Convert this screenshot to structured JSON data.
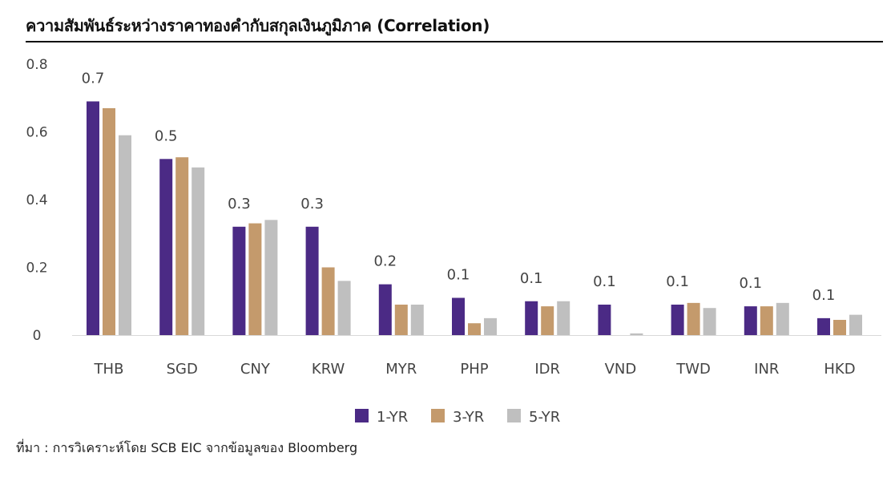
{
  "chart_data": {
    "type": "bar",
    "title": "ความสัมพันธ์ระหว่างราคาทองคำกับสกุลเงินภูมิภาค  (Correlation)",
    "xlabel": "",
    "ylabel": "",
    "ylim": [
      0,
      0.8
    ],
    "yticks": [
      0,
      0.2,
      0.4,
      0.6,
      0.8
    ],
    "ytick_labels": [
      "0",
      "0.2",
      "0.4",
      "0.6",
      "0.8"
    ],
    "grid": false,
    "legend_position": "bottom",
    "categories": [
      "THB",
      "SGD",
      "CNY",
      "KRW",
      "MYR",
      "PHP",
      "IDR",
      "VND",
      "TWD",
      "INR",
      "HKD"
    ],
    "series": [
      {
        "name": "1-YR",
        "color": "#4B2A85",
        "values": [
          0.69,
          0.52,
          0.32,
          0.32,
          0.15,
          0.11,
          0.1,
          0.09,
          0.09,
          0.085,
          0.05
        ]
      },
      {
        "name": "3-YR",
        "color": "#C49A6C",
        "values": [
          0.67,
          0.525,
          0.33,
          0.2,
          0.09,
          0.035,
          0.085,
          0.0,
          0.095,
          0.085,
          0.045
        ]
      },
      {
        "name": "5-YR",
        "color": "#BFBFBF",
        "values": [
          0.59,
          0.495,
          0.34,
          0.16,
          0.09,
          0.05,
          0.1,
          0.005,
          0.08,
          0.095,
          0.06
        ]
      }
    ],
    "data_labels": [
      "0.7",
      "0.5",
      "0.3",
      "0.3",
      "0.2",
      "0.1",
      "0.1",
      "0.1",
      "0.1",
      "0.1",
      "0.1"
    ]
  },
  "source": "ที่มา : การวิเคราะห์โดย SCB EIC จากข้อมูลของ Bloomberg"
}
